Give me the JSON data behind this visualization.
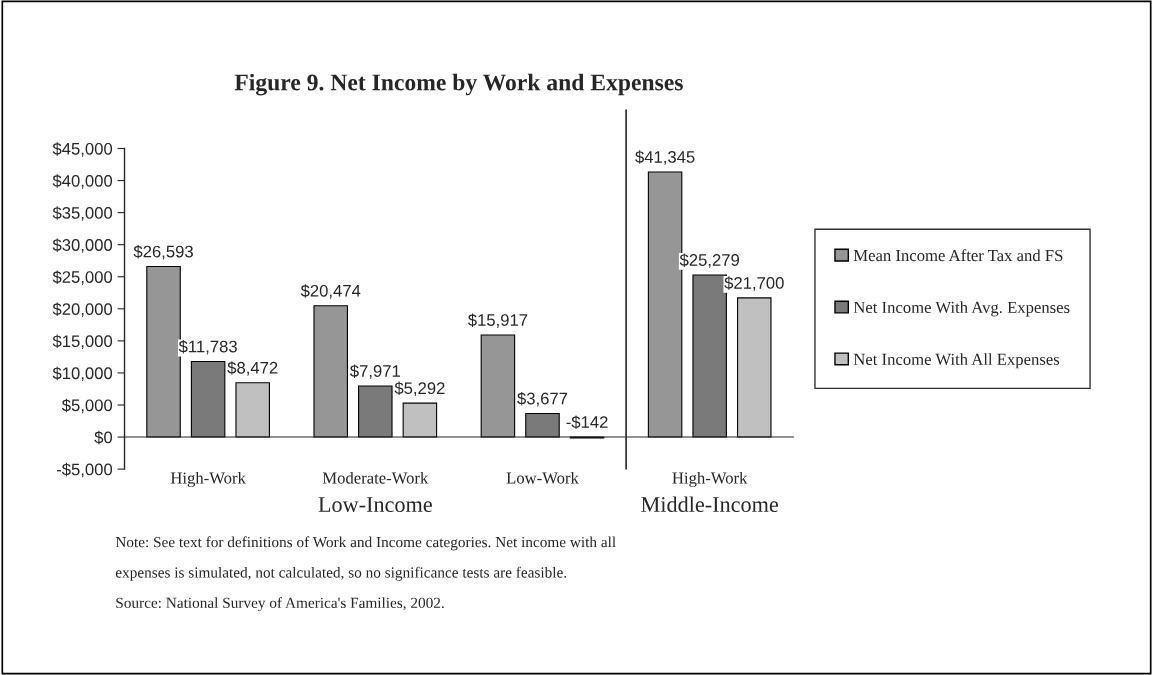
{
  "chart_data": {
    "type": "bar",
    "title": "Figure 9. Net Income by Work and Expenses",
    "categories": [
      "High-Work",
      "Moderate-Work",
      "Low-Work",
      "High-Work"
    ],
    "series": [
      {
        "name": "Mean Income After Tax and FS",
        "color": "#969696",
        "values": [
          26593,
          20474,
          15917,
          41345
        ],
        "value_labels": [
          "$26,593",
          "$20,474",
          "$15,917",
          "$41,345"
        ]
      },
      {
        "name": "Net Income With Avg. Expenses",
        "color": "#7a7a7a",
        "values": [
          11783,
          7971,
          3677,
          25279
        ],
        "value_labels": [
          "$11,783",
          "$7,971",
          "$3,677",
          "$25,279"
        ]
      },
      {
        "name": "Net Income With All Expenses",
        "color": "#c0c0c0",
        "values": [
          8472,
          5292,
          -142,
          21700
        ],
        "value_labels": [
          "$8,472",
          "$5,292",
          "-$142",
          "$21,700"
        ]
      }
    ],
    "ylim": [
      -5000,
      45000
    ],
    "yticks": [
      {
        "value": -5000,
        "label": "-$5,000"
      },
      {
        "value": 0,
        "label": "$0"
      },
      {
        "value": 5000,
        "label": "$5,000"
      },
      {
        "value": 10000,
        "label": "$10,000"
      },
      {
        "value": 15000,
        "label": "$15,000"
      },
      {
        "value": 20000,
        "label": "$20,000"
      },
      {
        "value": 25000,
        "label": "$25,000"
      },
      {
        "value": 30000,
        "label": "$30,000"
      },
      {
        "value": 35000,
        "label": "$35,000"
      },
      {
        "value": 40000,
        "label": "$40,000"
      },
      {
        "value": 45000,
        "label": "$45,000"
      }
    ],
    "grid": false,
    "legend": "right",
    "annotations": [
      "Low-Income",
      "Middle-Income",
      "Note: See text for definitions of Work and Income categories. Net income with all",
      "expenses is simulated, not calculated, so no significance tests are feasible.",
      "Source: National Survey of America's Families, 2002."
    ]
  }
}
